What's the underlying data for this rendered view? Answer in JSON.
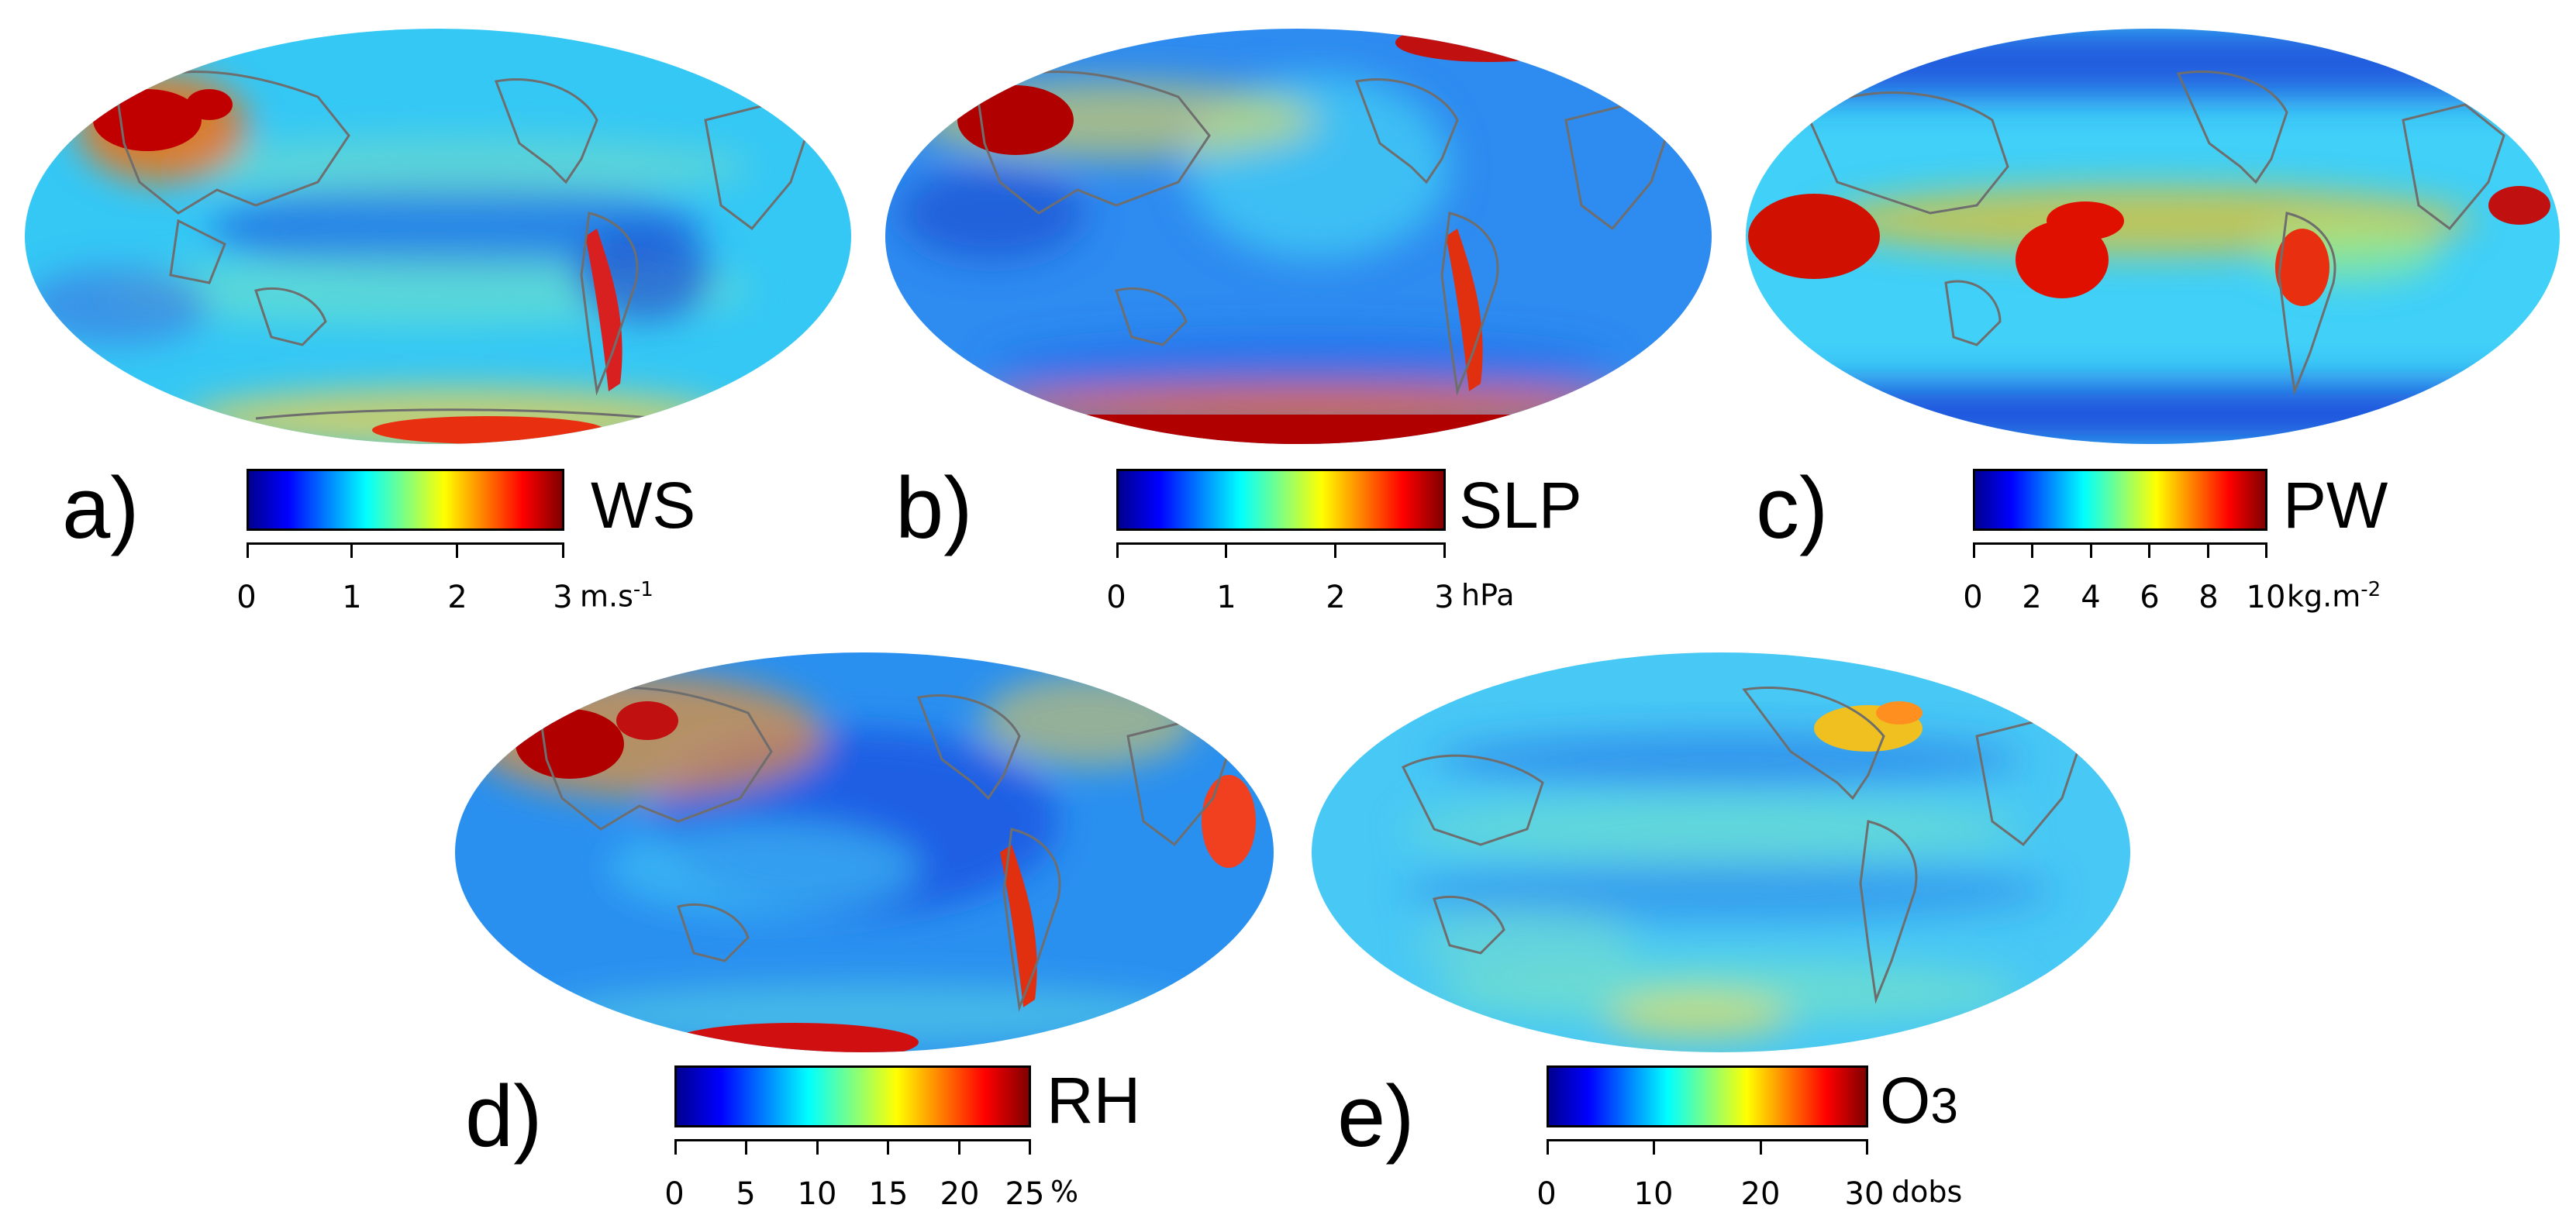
{
  "colormap": [
    "#00008f",
    "#0000ff",
    "#0080ff",
    "#00ffff",
    "#80ff80",
    "#ffff00",
    "#ff8000",
    "#ff0000",
    "#800000"
  ],
  "panels": [
    {
      "id": "a",
      "label": "a)",
      "var": "WS",
      "ticks": [
        "0",
        "1",
        "2",
        "3"
      ],
      "unit": "m.s",
      "unit_sup": "-1",
      "fields": {
        "base": "#35c8f5",
        "blobs": [
          {
            "desc": "central asia",
            "c": "#c00000"
          },
          {
            "desc": "tibet",
            "c": "#ff6a00"
          },
          {
            "desc": "tropical pacific",
            "c": "#1f6fe0"
          },
          {
            "desc": "equatorial band",
            "c": "#6fe3c8"
          },
          {
            "desc": "antarctic coast",
            "c": "#e83010"
          },
          {
            "desc": "andes",
            "c": "#d82020"
          }
        ]
      }
    },
    {
      "id": "b",
      "label": "b)",
      "var": "SLP",
      "ticks": [
        "0",
        "1",
        "2",
        "3"
      ],
      "unit": "hPa",
      "unit_sup": "",
      "fields": {
        "base": "#2e8bf0",
        "blobs": [
          {
            "desc": "central asia",
            "c": "#b00000"
          },
          {
            "desc": "antarctica",
            "c": "#b00000"
          },
          {
            "desc": "north pacific",
            "c": "#40c8f5"
          },
          {
            "desc": "andes",
            "c": "#e03010"
          },
          {
            "desc": "arctic",
            "c": "#e02010"
          }
        ]
      }
    },
    {
      "id": "c",
      "label": "c)",
      "var": "PW",
      "ticks": [
        "0",
        "2",
        "4",
        "6",
        "8",
        "10"
      ],
      "unit": "kg.m",
      "unit_sup": "-2",
      "fields": {
        "base": "#40d0f8",
        "blobs": [
          {
            "desc": "warm pool",
            "c": "#e01000"
          },
          {
            "desc": "indian ocean",
            "c": "#d01000"
          },
          {
            "desc": "itcz",
            "c": "#f0c020"
          },
          {
            "desc": "poles",
            "c": "#1a3fd8"
          },
          {
            "desc": "amazon",
            "c": "#e83010"
          }
        ]
      }
    },
    {
      "id": "d",
      "label": "d)",
      "var": "RH",
      "ticks": [
        "0",
        "5",
        "10",
        "15",
        "20",
        "25"
      ],
      "unit": "%",
      "unit_sup": "",
      "fields": {
        "base": "#2a90f0",
        "blobs": [
          {
            "desc": "central asia",
            "c": "#b00000"
          },
          {
            "desc": "siberia",
            "c": "#ff9020"
          },
          {
            "desc": "andes",
            "c": "#e03010"
          },
          {
            "desc": "antarctica",
            "c": "#d01010"
          },
          {
            "desc": "subtropics",
            "c": "#1c4fe0"
          }
        ]
      }
    },
    {
      "id": "e",
      "label": "e)",
      "var": "O",
      "var_sub": "3",
      "ticks": [
        "0",
        "10",
        "20",
        "30"
      ],
      "unit": "dobs",
      "unit_sup": "",
      "fields": {
        "base": "#48c8f5",
        "blobs": [
          {
            "desc": "north america",
            "c": "#f0c020"
          },
          {
            "desc": "tropics",
            "c": "#2a7fe8"
          },
          {
            "desc": "southern ocean",
            "c": "#7ee8c0"
          },
          {
            "desc": "antarctic",
            "c": "#ffe040"
          }
        ]
      }
    }
  ]
}
